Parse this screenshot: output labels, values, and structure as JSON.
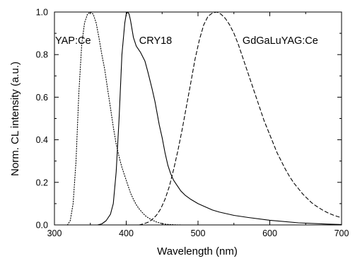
{
  "chart_data": {
    "type": "line",
    "title": "",
    "xlabel": "Wavelength (nm)",
    "ylabel": "Norm. CL intensity (a.u.)",
    "xlim": [
      300,
      700
    ],
    "ylim": [
      0.0,
      1.0
    ],
    "xticks": [
      300,
      400,
      500,
      600,
      700
    ],
    "xtick_labels": [
      "300",
      "400",
      "500",
      "600",
      "700"
    ],
    "yticks": [
      0.0,
      0.2,
      0.4,
      0.6,
      0.8,
      1.0
    ],
    "ytick_labels": [
      "0.0",
      "0.2",
      "0.4",
      "0.6",
      "0.8",
      "1.0"
    ],
    "grid": false,
    "legend": "none",
    "series": [
      {
        "name": "YAP:Ce",
        "line_style": "dotted",
        "label_at": [
          301,
          0.85
        ],
        "x": [
          318,
          322,
          326,
          330,
          334,
          338,
          342,
          346,
          350,
          354,
          358,
          362,
          366,
          370,
          374,
          378,
          382,
          386,
          390,
          394,
          398,
          402,
          406,
          410,
          414,
          418,
          422,
          426,
          430,
          434,
          438,
          442,
          446,
          450,
          456,
          462,
          468,
          476
        ],
        "y": [
          0.0,
          0.02,
          0.1,
          0.3,
          0.62,
          0.85,
          0.95,
          0.99,
          1.0,
          0.99,
          0.95,
          0.88,
          0.8,
          0.73,
          0.64,
          0.55,
          0.46,
          0.38,
          0.32,
          0.27,
          0.23,
          0.19,
          0.15,
          0.12,
          0.095,
          0.075,
          0.06,
          0.045,
          0.035,
          0.027,
          0.02,
          0.014,
          0.01,
          0.006,
          0.003,
          0.0015,
          0.0007,
          0.0
        ]
      },
      {
        "name": "CRY18",
        "line_style": "solid",
        "label_at": [
          418,
          0.85
        ],
        "x": [
          360,
          366,
          372,
          378,
          382,
          386,
          390,
          394,
          398,
          400,
          402,
          404,
          406,
          410,
          414,
          420,
          426,
          430,
          436,
          440,
          446,
          450,
          454,
          458,
          462,
          466,
          470,
          476,
          482,
          490,
          500,
          510,
          520,
          530,
          550,
          570,
          600,
          640,
          680,
          700
        ],
        "y": [
          0.0,
          0.005,
          0.02,
          0.05,
          0.1,
          0.25,
          0.5,
          0.8,
          0.95,
          0.99,
          1.0,
          0.99,
          0.96,
          0.88,
          0.84,
          0.81,
          0.77,
          0.72,
          0.64,
          0.58,
          0.47,
          0.41,
          0.34,
          0.28,
          0.24,
          0.21,
          0.19,
          0.16,
          0.14,
          0.12,
          0.1,
          0.085,
          0.07,
          0.06,
          0.045,
          0.035,
          0.022,
          0.01,
          0.004,
          0.002
        ]
      },
      {
        "name": "GdGaLuYAG:Ce",
        "line_style": "dashed",
        "label_at": [
          562,
          0.85
        ],
        "x": [
          418,
          424,
          430,
          436,
          442,
          448,
          454,
          460,
          466,
          472,
          478,
          484,
          490,
          496,
          502,
          508,
          514,
          520,
          526,
          532,
          538,
          544,
          550,
          556,
          562,
          568,
          574,
          580,
          586,
          592,
          598,
          604,
          610,
          616,
          622,
          628,
          634,
          640,
          646,
          652,
          658,
          664,
          670,
          676,
          682,
          688,
          694,
          700
        ],
        "y": [
          0.0,
          0.005,
          0.012,
          0.025,
          0.045,
          0.075,
          0.12,
          0.18,
          0.26,
          0.35,
          0.45,
          0.56,
          0.67,
          0.78,
          0.87,
          0.94,
          0.98,
          0.995,
          1.0,
          0.99,
          0.97,
          0.94,
          0.9,
          0.85,
          0.79,
          0.73,
          0.67,
          0.61,
          0.55,
          0.49,
          0.44,
          0.39,
          0.34,
          0.3,
          0.26,
          0.225,
          0.195,
          0.17,
          0.145,
          0.125,
          0.105,
          0.09,
          0.077,
          0.065,
          0.055,
          0.047,
          0.04,
          0.034
        ]
      }
    ]
  }
}
